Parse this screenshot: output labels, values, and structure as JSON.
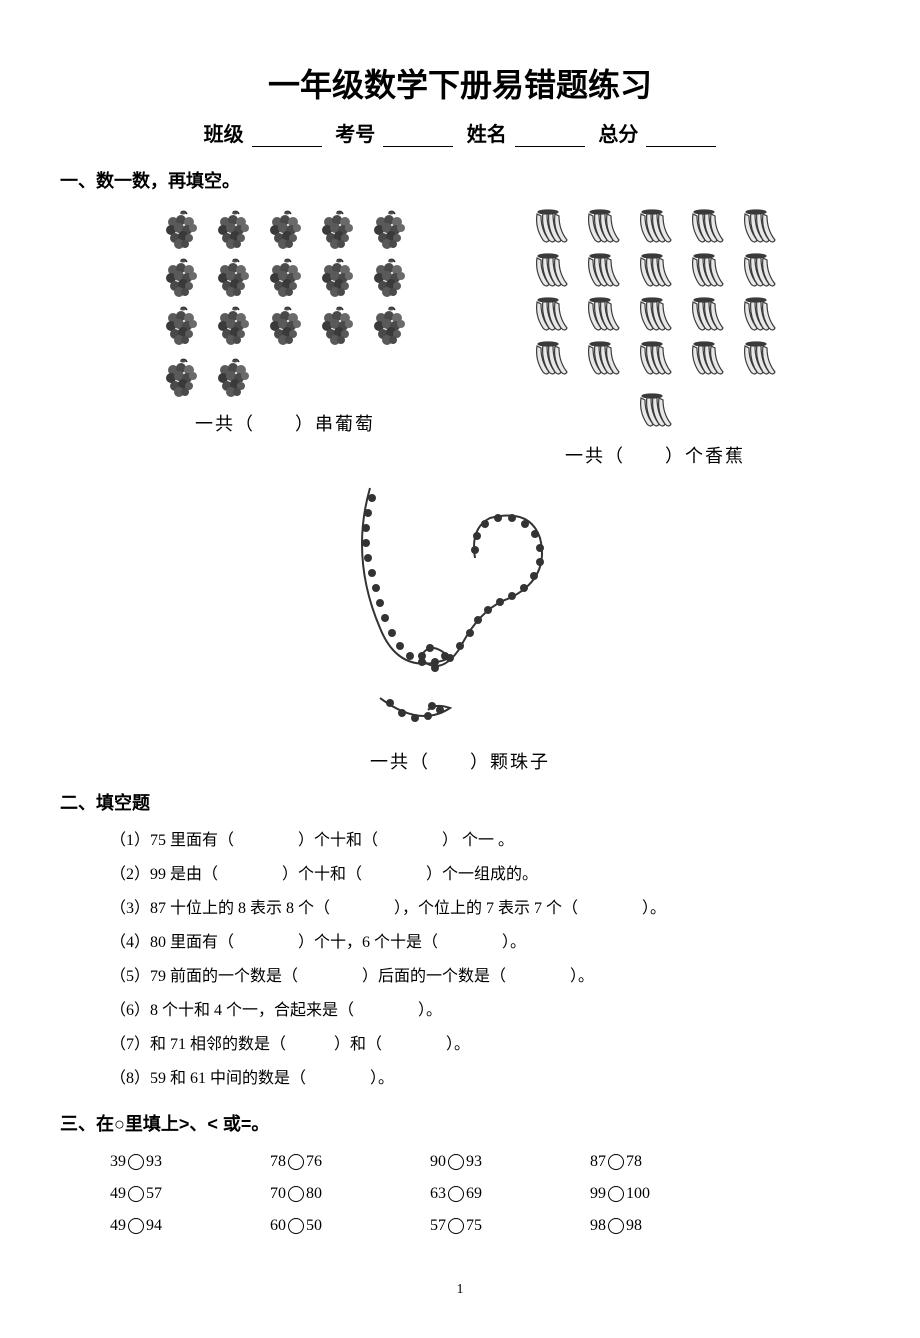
{
  "title": "一年级数学下册易错题练习",
  "header": {
    "class_label": "班级",
    "exam_no_label": "考号",
    "name_label": "姓名",
    "score_label": "总分"
  },
  "section1": {
    "title": "一、数一数，再填空。",
    "grapes": {
      "full_rows": 3,
      "cols": 5,
      "extra": 2,
      "caption_prefix": "一共（",
      "caption_suffix": "）串葡萄"
    },
    "bananas": {
      "full_rows": 4,
      "cols": 5,
      "extra": 1,
      "caption_prefix": "一共（",
      "caption_suffix": "）个香蕉"
    },
    "beads": {
      "caption_prefix": "一共（",
      "caption_suffix": "）颗珠子"
    }
  },
  "section2": {
    "title": "二、填空题",
    "items": [
      "（1）75 里面有（　　　　）个十和（　　　　） 个一 。",
      "（2）99 是由（　　　　）个十和（　　　　）个一组成的。",
      "（3）87 十位上的 8 表示 8 个（　　　　），个位上的 7 表示 7 个（　　　　）。",
      "（4）80 里面有（　　　　）个十，6 个十是（　　　　）。",
      "（5）79 前面的一个数是（　　　　）后面的一个数是（　　　　）。",
      "（6）8 个十和 4 个一，合起来是（　　　　）。",
      "（7）和 71 相邻的数是（　　　）和（　　　　）。",
      "（8）59 和 61 中间的数是（　　　　）。"
    ]
  },
  "section3": {
    "title": "三、在○里填上>、< 或=。",
    "rows": [
      [
        {
          "a": "39",
          "b": "93"
        },
        {
          "a": "78",
          "b": "76"
        },
        {
          "a": "90",
          "b": "93"
        },
        {
          "a": "87",
          "b": "78"
        }
      ],
      [
        {
          "a": "49",
          "b": "57"
        },
        {
          "a": "70",
          "b": "80"
        },
        {
          "a": "63",
          "b": "69"
        },
        {
          "a": "99",
          "b": "100"
        }
      ],
      [
        {
          "a": "49",
          "b": "94"
        },
        {
          "a": "60",
          "b": "50"
        },
        {
          "a": "57",
          "b": "75"
        },
        {
          "a": "98",
          "b": "98"
        }
      ]
    ]
  },
  "page_number": "1",
  "colors": {
    "text": "#000000",
    "background": "#ffffff",
    "grape_dark": "#2a2a2a",
    "grape_mid": "#6a6a6a",
    "banana_line": "#3a3a3a",
    "bead": "#333333"
  }
}
